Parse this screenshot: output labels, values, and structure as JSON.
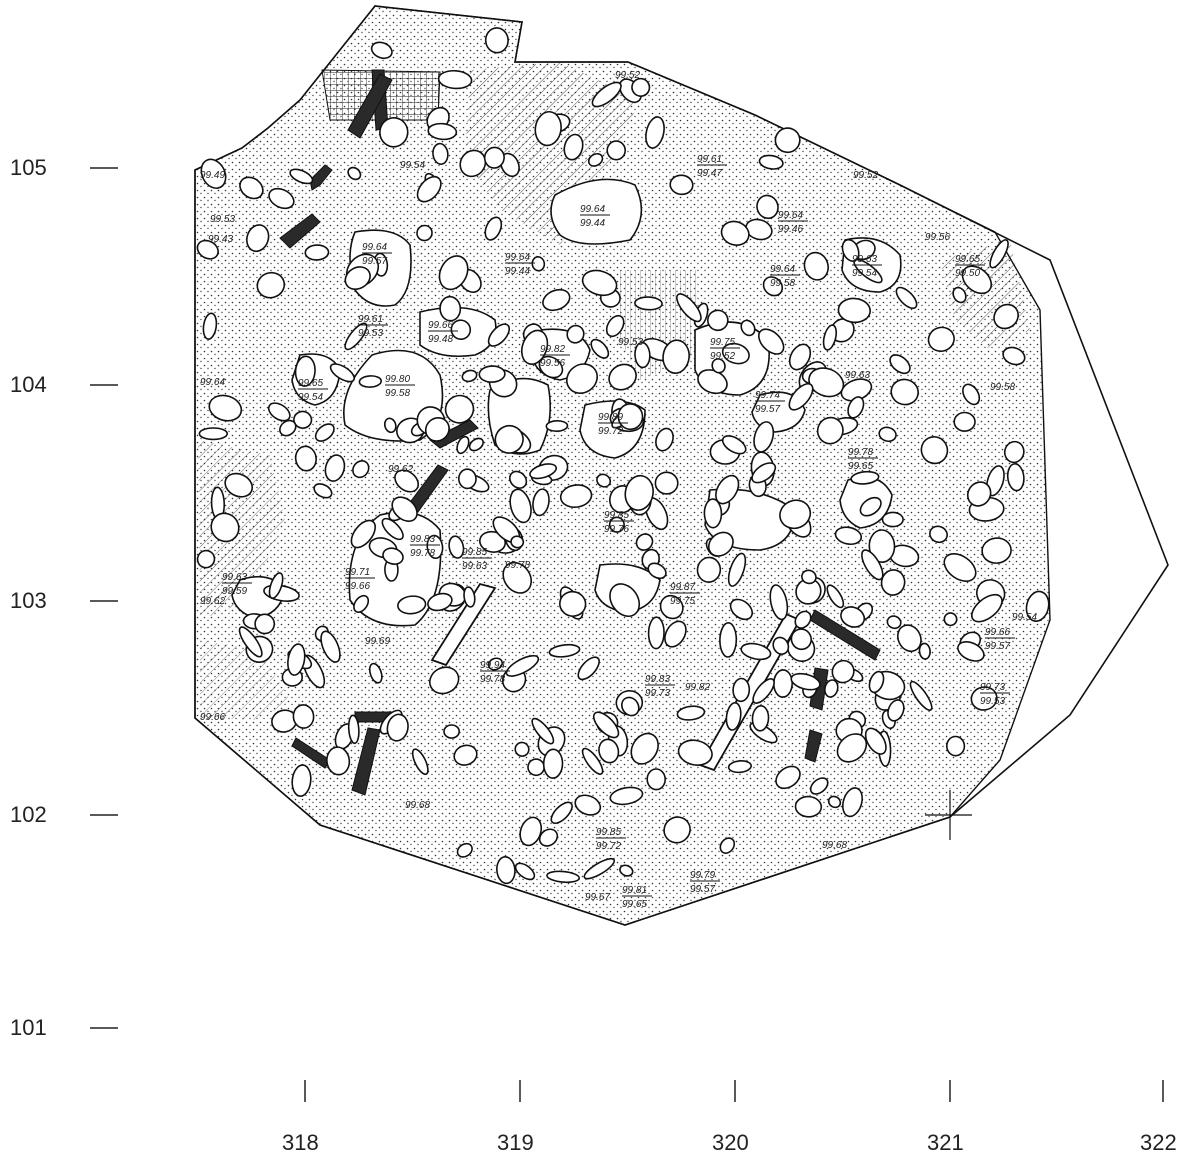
{
  "y_axis": {
    "ticks": [
      {
        "value": "105",
        "y_label": "105"
      },
      {
        "value": "104",
        "y_label": "104"
      },
      {
        "value": "103",
        "y_label": "103"
      },
      {
        "value": "102",
        "y_label": "102"
      },
      {
        "value": "101",
        "y_label": "101"
      }
    ]
  },
  "x_axis": {
    "ticks": [
      "318",
      "319",
      "320",
      "321",
      "322"
    ]
  },
  "elevations": [
    {
      "id": "e1",
      "text": "99.49"
    },
    {
      "id": "e2",
      "text": "99.54"
    },
    {
      "id": "e3",
      "text": "99.52"
    },
    {
      "id": "e4",
      "text": "99.52"
    },
    {
      "id": "e5",
      "text": "99.56"
    },
    {
      "id": "e6",
      "text": "99.53"
    },
    {
      "id": "e7",
      "text": "99.43"
    },
    {
      "id": "e8",
      "text": "99.64"
    },
    {
      "id": "e9",
      "text": "99.62"
    },
    {
      "id": "e10",
      "text": "99.78"
    },
    {
      "id": "e11",
      "text": "99.62"
    },
    {
      "id": "e12",
      "text": "99.69"
    },
    {
      "id": "e13",
      "text": "99.66"
    },
    {
      "id": "e14",
      "text": "99.68"
    },
    {
      "id": "e15",
      "text": "99.82"
    },
    {
      "id": "e16",
      "text": "99.67"
    },
    {
      "id": "e17",
      "text": "99.68"
    },
    {
      "id": "e18",
      "text": "99.54"
    },
    {
      "id": "e19",
      "text": "99.58"
    },
    {
      "id": "e20",
      "text": "99.63"
    },
    {
      "id": "e21",
      "text": "99.53"
    }
  ],
  "stone_labels": [
    {
      "top": "99.64",
      "bottom": "99.44"
    },
    {
      "top": "99.64",
      "bottom": "99.57"
    },
    {
      "top": "99.80",
      "bottom": "99.58"
    },
    {
      "top": "99.66",
      "bottom": "99.48"
    },
    {
      "top": "99.61",
      "bottom": "99.53"
    },
    {
      "top": "99.65",
      "bottom": "99.54"
    },
    {
      "top": "99.75",
      "bottom": "99.52"
    },
    {
      "top": "99.82",
      "bottom": "99.56"
    },
    {
      "top": "99.64",
      "bottom": "99.58"
    },
    {
      "top": "99.63",
      "bottom": "99.54"
    },
    {
      "top": "99.65",
      "bottom": "99.50"
    },
    {
      "top": "99.83",
      "bottom": "99.78"
    },
    {
      "top": "99.71",
      "bottom": "99.66"
    },
    {
      "top": "99.94",
      "bottom": "99.78"
    },
    {
      "top": "99.85",
      "bottom": "99.76"
    },
    {
      "top": "99.89",
      "bottom": "99.72"
    },
    {
      "top": "99.63",
      "bottom": "99.59"
    },
    {
      "top": "99.74",
      "bottom": "99.57"
    },
    {
      "top": "99.78",
      "bottom": "99.65"
    },
    {
      "top": "99.73",
      "bottom": "99.53"
    },
    {
      "top": "99.66",
      "bottom": "99.57"
    },
    {
      "top": "99.79",
      "bottom": "99.57"
    },
    {
      "top": "99.81",
      "bottom": "99.65"
    },
    {
      "top": "99.85",
      "bottom": "99.72"
    },
    {
      "top": "99.87",
      "bottom": "99.75"
    },
    {
      "top": "99.83",
      "bottom": "99.73"
    },
    {
      "top": "99.85",
      "bottom": "99.63"
    },
    {
      "top": "99.64",
      "bottom": "99.46"
    },
    {
      "top": "99.61",
      "bottom": "99.47"
    },
    {
      "top": "99.64",
      "bottom": "99.44"
    }
  ]
}
